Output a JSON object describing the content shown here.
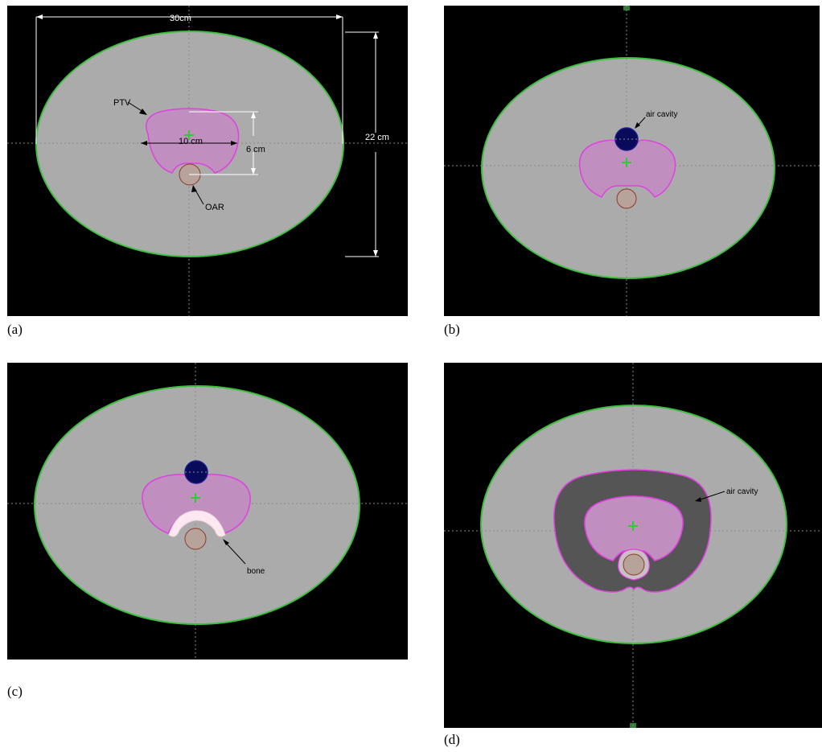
{
  "panels": [
    {
      "caption": "(a)",
      "labels": {
        "width": "30cm",
        "height": "22 cm",
        "ptv_width": "10 cm",
        "ptv_height": "6 cm",
        "ptv": "PTV",
        "oar": "OAR"
      }
    },
    {
      "caption": "(b)",
      "labels": {
        "air_cavity": "air cavity"
      }
    },
    {
      "caption": "(c)",
      "labels": {
        "bone": "bone"
      }
    },
    {
      "caption": "(d)",
      "labels": {
        "air_cavity": "air cavity"
      }
    }
  ],
  "colors": {
    "background": "#000000",
    "body_fill": "#ababab",
    "body_contour": "#3fbf3f",
    "ptv_fill": "#c08fc0",
    "ptv_contour": "#e040e0",
    "oar_fill": "#b8a39a",
    "oar_contour": "#8b3a2a",
    "air_fill": "#0a0a5a",
    "air_ring_fill": "#555555",
    "bone_fill": "#fbe8f0",
    "isocenter": "#2ecc2e",
    "crosshair": "#8a8a8a"
  }
}
